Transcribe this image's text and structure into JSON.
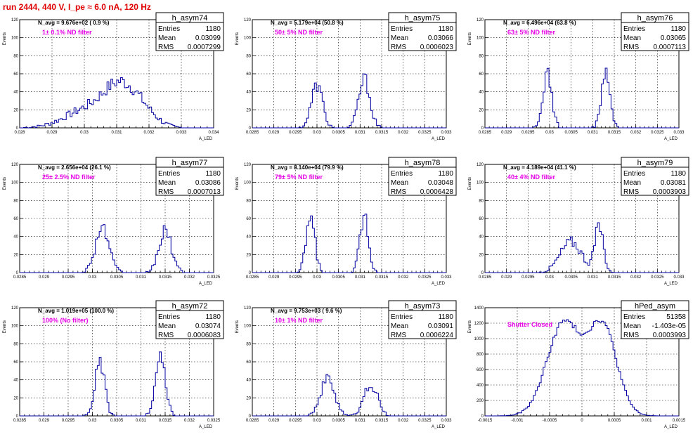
{
  "run_title": "run 2444,   440 V, I_pe ≈ 6.0 nA, 120 Hz",
  "stats_labels": {
    "entries": "Entries",
    "mean": "Mean",
    "rms": "RMS"
  },
  "line_color": "#0000a0",
  "filter_color": "#e600e6",
  "title_color": "#e00000",
  "chart_data": [
    {
      "type": "histogram",
      "name": "h_asym74",
      "entries": "1180",
      "mean": "0.03099",
      "rms": "0.0007299",
      "navg_label": "N_avg = 9.676e+02 ( 0.9 %)",
      "filter_label": "1± 0.1% ND filter",
      "xlabel": "A_LED",
      "ylabel": "Events",
      "xlim": [
        0.028,
        0.034
      ],
      "ylim": [
        0,
        120
      ],
      "xticks": [
        "0.028",
        "0.029",
        "0.03",
        "0.031",
        "0.032",
        "0.033",
        "0.034"
      ],
      "yticks": [
        "0",
        "20",
        "40",
        "60",
        "80",
        "100",
        "120"
      ],
      "peaks": [
        [
          0.0301,
          0.0007,
          20
        ],
        [
          0.0311,
          0.0005,
          40
        ],
        [
          0.0318,
          0.00045,
          15
        ]
      ]
    },
    {
      "type": "histogram",
      "name": "h_asym75",
      "entries": "1180",
      "mean": "0.03066",
      "rms": "0.0006023",
      "navg_label": "N_avg = 5.179e+04 (50.8 %)",
      "filter_label": "50± 5% ND filter",
      "xlabel": "A_LED",
      "ylabel": "Events",
      "xlim": [
        0.0285,
        0.033
      ],
      "ylim": [
        0,
        120
      ],
      "xticks": [
        "0.0285",
        "0.029",
        "0.0295",
        "0.03",
        "0.0305",
        "0.031",
        "0.0315",
        "0.032",
        "0.0325",
        "0.033"
      ],
      "yticks": [
        "0",
        "20",
        "40",
        "60",
        "80",
        "100",
        "120"
      ],
      "peaks": [
        [
          0.03,
          0.00013,
          47
        ],
        [
          0.0311,
          0.00013,
          54
        ]
      ]
    },
    {
      "type": "histogram",
      "name": "h_asym76",
      "entries": "1180",
      "mean": "0.03065",
      "rms": "0.0007113",
      "navg_label": "N_avg = 6.496e+04 (63.8 %)",
      "filter_label": "63± 5% ND filter",
      "xlabel": "A_LED",
      "ylabel": "Events",
      "xlim": [
        0.0285,
        0.033
      ],
      "ylim": [
        0,
        120
      ],
      "xticks": [
        "0.0285",
        "0.029",
        "0.0295",
        "0.03",
        "0.0305",
        "0.031",
        "0.0315",
        "0.032",
        "0.0325",
        "0.033"
      ],
      "yticks": [
        "0",
        "20",
        "40",
        "60",
        "80",
        "100",
        "120"
      ],
      "peaks": [
        [
          0.02995,
          0.0001,
          62
        ],
        [
          0.0313,
          0.0001,
          60
        ]
      ]
    },
    {
      "type": "histogram",
      "name": "h_asym77",
      "entries": "1180",
      "mean": "0.03086",
      "rms": "0.0007013",
      "navg_label": "N_avg = 2.656e+04 (26.1 %)",
      "filter_label": "25± 2.5% ND filter",
      "xlabel": "A_LED",
      "ylabel": "Events",
      "xlim": [
        0.0285,
        0.0325
      ],
      "ylim": [
        0,
        120
      ],
      "xticks": [
        "0.0285",
        "0.029",
        "0.0295",
        "0.03",
        "0.0305",
        "0.031",
        "0.0315",
        "0.032",
        "0.0325"
      ],
      "yticks": [
        "0",
        "20",
        "40",
        "60",
        "80",
        "100",
        "120"
      ],
      "peaks": [
        [
          0.0302,
          0.00014,
          50
        ],
        [
          0.0315,
          0.00013,
          46
        ]
      ]
    },
    {
      "type": "histogram",
      "name": "h_asym78",
      "entries": "1180",
      "mean": "0.03048",
      "rms": "0.0006428",
      "navg_label": "N_avg = 8.140e+04 (79.9 %)",
      "filter_label": "79± 5% ND filter",
      "xlabel": "A_LED",
      "ylabel": "Events",
      "xlim": [
        0.0285,
        0.033
      ],
      "ylim": [
        0,
        120
      ],
      "xticks": [
        "0.0285",
        "0.029",
        "0.0295",
        "0.03",
        "0.0305",
        "0.031",
        "0.0315",
        "0.032",
        "0.0325",
        "0.033"
      ],
      "yticks": [
        "0",
        "20",
        "40",
        "60",
        "80",
        "100",
        "120"
      ],
      "peaks": [
        [
          0.02985,
          0.0001,
          62
        ],
        [
          0.0311,
          0.0001,
          64
        ]
      ]
    },
    {
      "type": "histogram",
      "name": "h_asym79",
      "entries": "1180",
      "mean": "0.03081",
      "rms": "0.0003903",
      "navg_label": "N_avg = 4.189e+04 (41.1 %)",
      "filter_label": "40± 4% ND filter",
      "xlabel": "A_LED",
      "ylabel": "Events",
      "xlim": [
        0.0285,
        0.033
      ],
      "ylim": [
        0,
        120
      ],
      "xticks": [
        "0.0285",
        "0.029",
        "0.0295",
        "0.03",
        "0.0305",
        "0.031",
        "0.0315",
        "0.032",
        "0.0325",
        "0.033"
      ],
      "yticks": [
        "0",
        "20",
        "40",
        "60",
        "80",
        "100",
        "120"
      ],
      "peaks": [
        [
          0.0305,
          0.00025,
          34
        ],
        [
          0.03115,
          0.0001,
          50
        ]
      ]
    },
    {
      "type": "histogram",
      "name": "h_asym72",
      "entries": "1180",
      "mean": "0.03074",
      "rms": "0.0006083",
      "navg_label": "N_avg = 1.019e+05 (100.0 %)",
      "filter_label": "100% (No filter)",
      "xlabel": "A_LED",
      "ylabel": "Events",
      "xlim": [
        0.0285,
        0.0325
      ],
      "ylim": [
        0,
        120
      ],
      "xticks": [
        "0.0285",
        "0.029",
        "0.0295",
        "0.03",
        "0.0305",
        "0.031",
        "0.0315",
        "0.032",
        "0.0325"
      ],
      "yticks": [
        "0",
        "20",
        "40",
        "60",
        "80",
        "100",
        "120"
      ],
      "peaks": [
        [
          0.03015,
          0.0001,
          58
        ],
        [
          0.0314,
          0.0001,
          64
        ]
      ]
    },
    {
      "type": "histogram",
      "name": "h_asym73",
      "entries": "1180",
      "mean": "0.03091",
      "rms": "0.0006224",
      "navg_label": "N_avg = 9.753e+03 ( 9.6 %)",
      "filter_label": "10± 1% ND filter",
      "xlabel": "A_LED",
      "ylabel": "Events",
      "xlim": [
        0.0285,
        0.033
      ],
      "ylim": [
        0,
        120
      ],
      "xticks": [
        "0.0285",
        "0.029",
        "0.0295",
        "0.03",
        "0.0305",
        "0.031",
        "0.0315",
        "0.032",
        "0.0325",
        "0.033"
      ],
      "yticks": [
        "0",
        "20",
        "40",
        "60",
        "80",
        "100",
        "120"
      ],
      "peaks": [
        [
          0.03025,
          0.00017,
          40
        ],
        [
          0.03125,
          0.00015,
          36
        ]
      ]
    },
    {
      "type": "histogram",
      "name": "hPed_asym",
      "entries": "51358",
      "mean": "-1.403e-05",
      "rms": "0.0003993",
      "navg_label": "",
      "filter_label": "Shutter Closed",
      "xlabel": "A_LED",
      "ylabel": "Events",
      "xlim": [
        -0.0015,
        0.0015
      ],
      "ylim": [
        0,
        1400
      ],
      "xticks": [
        "-0.0015",
        "-0.001",
        "-0.0005",
        "0",
        "0.0005",
        "0.001",
        "0.0015"
      ],
      "yticks": [
        "0",
        "200",
        "400",
        "600",
        "800",
        "1000",
        "1200",
        "1400"
      ],
      "peaks": [
        [
          -0.00028,
          0.00026,
          1200
        ],
        [
          0.00032,
          0.00022,
          1150
        ]
      ]
    }
  ]
}
